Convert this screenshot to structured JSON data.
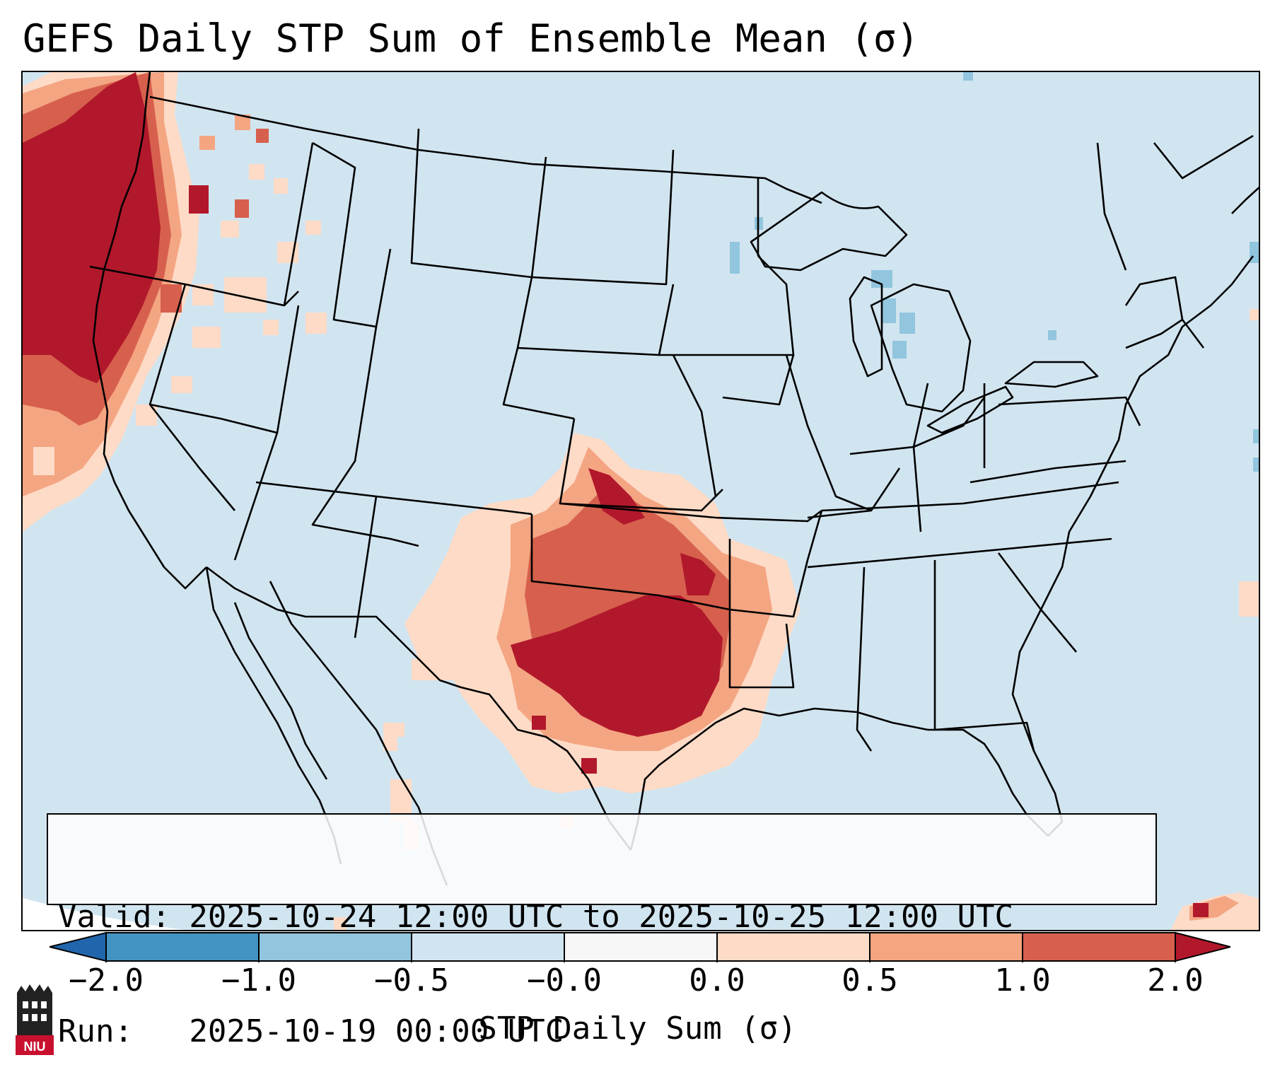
{
  "title": "GEFS Daily STP Sum of Ensemble Mean (σ)",
  "info": {
    "valid": "Valid: 2025-10-24 12:00 UTC to 2025-10-25 12:00 UTC",
    "run": "Run:   2025-10-19 00:00 UTC"
  },
  "colorbar": {
    "label": "STP Daily Sum (σ)",
    "ticks": [
      "−2.0",
      "−1.0",
      "−0.5",
      "−0.0",
      "0.0",
      "0.5",
      "1.0",
      "2.0"
    ],
    "colors": [
      "#4393c3",
      "#92c5de",
      "#d1e5f0",
      "#f7f7f7",
      "#fddbc7",
      "#f4a582",
      "#d6604d",
      "#b2182b"
    ],
    "extend_low_color": "#2166ac",
    "extend_high_color": "#b2182b"
  },
  "map": {
    "background_color": "#d1e5f0",
    "region": "Contiguous United States",
    "anomaly_regions": [
      {
        "name": "Pacific Northwest coast",
        "category": "2.0",
        "color": "#b2182b"
      },
      {
        "name": "Southern Plains / Texas-Oklahoma",
        "category": "2.0",
        "color": "#b2182b"
      },
      {
        "name": "Kansas-Missouri-Arkansas fringe",
        "category": "0.5",
        "color": "#f4a582"
      },
      {
        "name": "Lake Michigan",
        "category": "-1.0",
        "color": "#92c5de"
      }
    ]
  },
  "logo": {
    "text": "NIU",
    "color": "#c8102e"
  }
}
